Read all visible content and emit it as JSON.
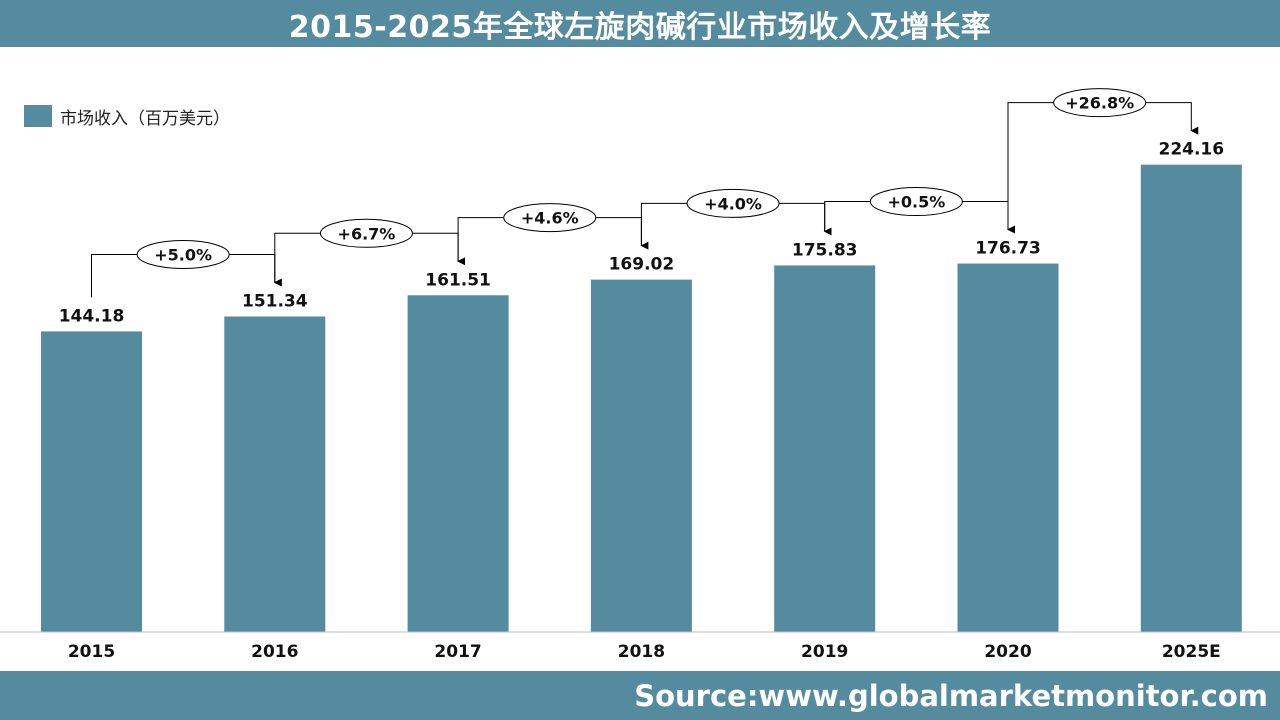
{
  "title": "2015-2025年全球左旋肉碱行业市场收入及增长率",
  "source": "Source:www.globalmarketmonitor.com",
  "colors": {
    "bar": "#558b9e",
    "header": "#558b9e"
  },
  "chart_data": {
    "type": "bar",
    "categories": [
      "2015",
      "2016",
      "2017",
      "2018",
      "2019",
      "2020",
      "2025E"
    ],
    "series": [
      {
        "name": "市场收入（百万美元）",
        "values": [
          144.18,
          151.34,
          161.51,
          169.02,
          175.83,
          176.73,
          224.16
        ]
      }
    ],
    "value_labels": [
      "144.18",
      "151.34",
      "161.51",
      "169.02",
      "175.83",
      "176.73",
      "224.16"
    ],
    "growth_labels": [
      "+5.0%",
      "+6.7%",
      "+4.6%",
      "+4.0%",
      "+0.5%",
      "+26.8%"
    ],
    "ylim": [
      0,
      250
    ],
    "grid": false,
    "legend": "top-left"
  }
}
